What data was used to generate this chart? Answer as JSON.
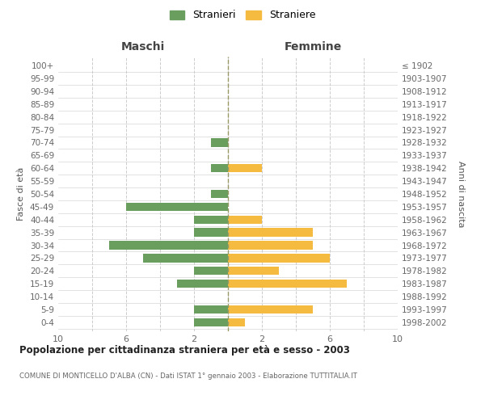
{
  "age_groups": [
    "0-4",
    "5-9",
    "10-14",
    "15-19",
    "20-24",
    "25-29",
    "30-34",
    "35-39",
    "40-44",
    "45-49",
    "50-54",
    "55-59",
    "60-64",
    "65-69",
    "70-74",
    "75-79",
    "80-84",
    "85-89",
    "90-94",
    "95-99",
    "100+"
  ],
  "birth_years": [
    "1998-2002",
    "1993-1997",
    "1988-1992",
    "1983-1987",
    "1978-1982",
    "1973-1977",
    "1968-1972",
    "1963-1967",
    "1958-1962",
    "1953-1957",
    "1948-1952",
    "1943-1947",
    "1938-1942",
    "1933-1937",
    "1928-1932",
    "1923-1927",
    "1918-1922",
    "1913-1917",
    "1908-1912",
    "1903-1907",
    "≤ 1902"
  ],
  "males": [
    2,
    2,
    0,
    3,
    2,
    5,
    7,
    2,
    2,
    6,
    1,
    0,
    1,
    0,
    1,
    0,
    0,
    0,
    0,
    0,
    0
  ],
  "females": [
    1,
    5,
    0,
    7,
    3,
    6,
    5,
    5,
    2,
    0,
    0,
    0,
    2,
    0,
    0,
    0,
    0,
    0,
    0,
    0,
    0
  ],
  "male_color": "#6a9e5e",
  "female_color": "#f5bb40",
  "legend_male": "Stranieri",
  "legend_female": "Straniere",
  "title": "Popolazione per cittadinanza straniera per età e sesso - 2003",
  "subtitle": "COMUNE DI MONTICELLO D'ALBA (CN) - Dati ISTAT 1° gennaio 2003 - Elaborazione TUTTITALIA.IT",
  "xlabel_left": "Maschi",
  "xlabel_right": "Femmine",
  "ylabel_left": "Fasce di età",
  "ylabel_right": "Anni di nascita",
  "xlim": 10,
  "bg_color": "#ffffff",
  "grid_color": "#cccccc"
}
